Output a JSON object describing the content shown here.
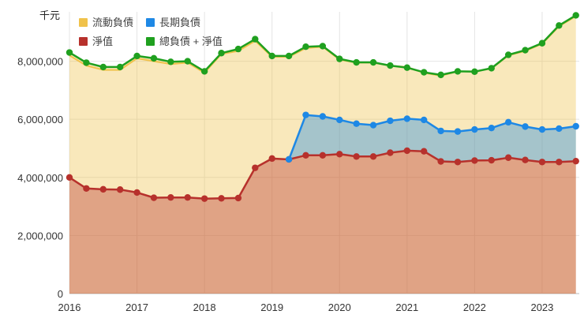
{
  "chart_data": {
    "type": "area",
    "unit_label": "千元",
    "ylim": [
      0,
      9700000
    ],
    "y_ticks": [
      0,
      2000000,
      4000000,
      6000000,
      8000000
    ],
    "y_tick_labels": [
      "0",
      "2,000,000",
      "4,000,000",
      "6,000,000",
      "8,000,000"
    ],
    "xlim": [
      2016.0,
      2023.55
    ],
    "x_ticks": [
      2016,
      2017,
      2018,
      2019,
      2020,
      2021,
      2022,
      2023
    ],
    "x_tick_labels": [
      "2016",
      "2017",
      "2018",
      "2019",
      "2020",
      "2021",
      "2022",
      "2023"
    ],
    "grid": true,
    "legend_position": "top-left",
    "x": [
      2016.0,
      2016.25,
      2016.5,
      2016.75,
      2017.0,
      2017.25,
      2017.5,
      2017.75,
      2018.0,
      2018.25,
      2018.5,
      2018.75,
      2019.0,
      2019.25,
      2019.5,
      2019.75,
      2020.0,
      2020.25,
      2020.5,
      2020.75,
      2021.0,
      2021.25,
      2021.5,
      2021.75,
      2022.0,
      2022.25,
      2022.5,
      2022.75,
      2023.0,
      2023.25,
      2023.5
    ],
    "series": [
      {
        "name": "流動負債",
        "color": "#f0c24b",
        "values": [
          8200000,
          7850000,
          7700000,
          7700000,
          8100000,
          8000000,
          7900000,
          7950000,
          7600000,
          8250000,
          8350000,
          8700000,
          8150000,
          8150000,
          8450000,
          8500000,
          8050000,
          7950000,
          7950000,
          7850000,
          7800000,
          7600000,
          7500000,
          7650000,
          7650000,
          7750000,
          8200000,
          8350000,
          8600000,
          9200000,
          9550000
        ]
      },
      {
        "name": "長期負債",
        "color": "#1e88e5",
        "values": [
          null,
          null,
          null,
          null,
          null,
          null,
          null,
          null,
          null,
          null,
          null,
          null,
          null,
          4620000,
          6150000,
          6100000,
          5980000,
          5850000,
          5800000,
          5950000,
          6020000,
          5980000,
          5600000,
          5580000,
          5650000,
          5700000,
          5900000,
          5750000,
          5650000,
          5680000,
          5760000
        ]
      },
      {
        "name": "淨值",
        "color": "#b7312c",
        "values": [
          4000000,
          3620000,
          3590000,
          3580000,
          3480000,
          3300000,
          3310000,
          3310000,
          3270000,
          3280000,
          3290000,
          4330000,
          4650000,
          4620000,
          4760000,
          4760000,
          4800000,
          4720000,
          4720000,
          4850000,
          4920000,
          4900000,
          4550000,
          4530000,
          4580000,
          4590000,
          4680000,
          4600000,
          4530000,
          4530000,
          4560000
        ]
      },
      {
        "name": "總負債 + 淨值",
        "color": "#1fa01f",
        "values": [
          8300000,
          7950000,
          7800000,
          7800000,
          8180000,
          8100000,
          7980000,
          8000000,
          7650000,
          8280000,
          8420000,
          8760000,
          8180000,
          8180000,
          8500000,
          8520000,
          8080000,
          7960000,
          7960000,
          7850000,
          7780000,
          7620000,
          7530000,
          7650000,
          7640000,
          7760000,
          8220000,
          8380000,
          8620000,
          9230000,
          9580000
        ]
      }
    ]
  }
}
